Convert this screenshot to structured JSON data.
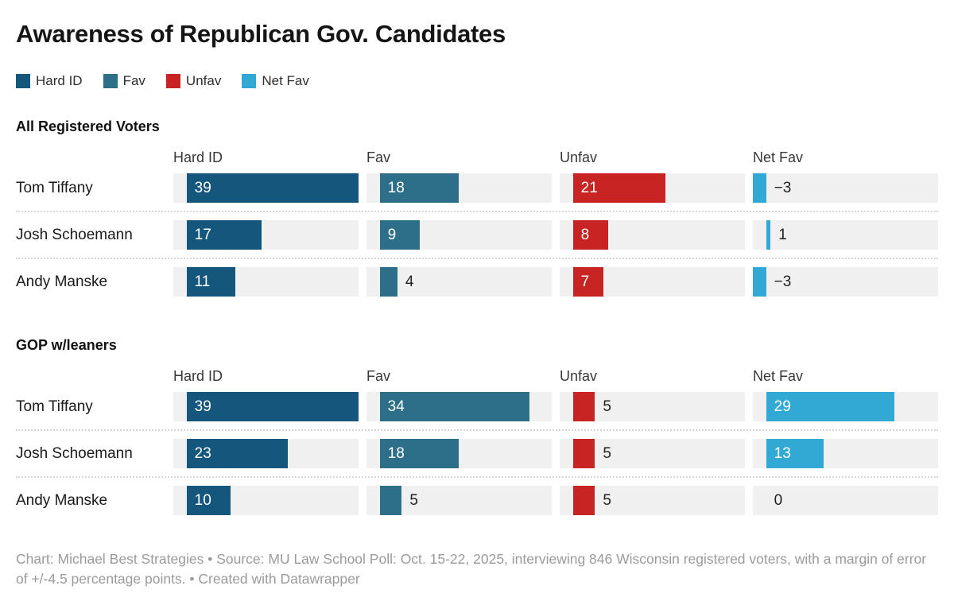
{
  "title": "Awareness of Republican Gov. Candidates",
  "legend": [
    {
      "label": "Hard ID",
      "color": "#15567d"
    },
    {
      "label": "Fav",
      "color": "#2d6e88"
    },
    {
      "label": "Unfav",
      "color": "#c92424"
    },
    {
      "label": "Net Fav",
      "color": "#31a9d4"
    }
  ],
  "chart_data": {
    "type": "bar",
    "columns": [
      "Hard ID",
      "Fav",
      "Unfav",
      "Net Fav"
    ],
    "series_colors": [
      "#15567d",
      "#2d6e88",
      "#c92424",
      "#31a9d4"
    ],
    "track_color": "#f0f0f0",
    "axis": {
      "min": -3,
      "max": 39
    },
    "label_inside_min_value": 6,
    "groups": [
      {
        "title": "All Registered Voters",
        "rows": [
          {
            "name": "Tom Tiffany",
            "values": [
              39,
              18,
              21,
              -3
            ]
          },
          {
            "name": "Josh Schoemann",
            "values": [
              17,
              9,
              8,
              1
            ]
          },
          {
            "name": "Andy Manske",
            "values": [
              11,
              4,
              7,
              -3
            ]
          }
        ]
      },
      {
        "title": "GOP w/leaners",
        "rows": [
          {
            "name": "Tom Tiffany",
            "values": [
              39,
              34,
              5,
              29
            ]
          },
          {
            "name": "Josh Schoemann",
            "values": [
              23,
              18,
              5,
              13
            ]
          },
          {
            "name": "Andy Manske",
            "values": [
              10,
              5,
              5,
              0
            ]
          }
        ]
      }
    ]
  },
  "footer": {
    "text": "Chart: Michael Best Strategies • Source: MU Law School Poll: Oct. 15-22, 2025, interviewing 846 Wisconsin registered voters, with a margin of error of +/-4.5 percentage points. • Created with Datawrapper"
  }
}
